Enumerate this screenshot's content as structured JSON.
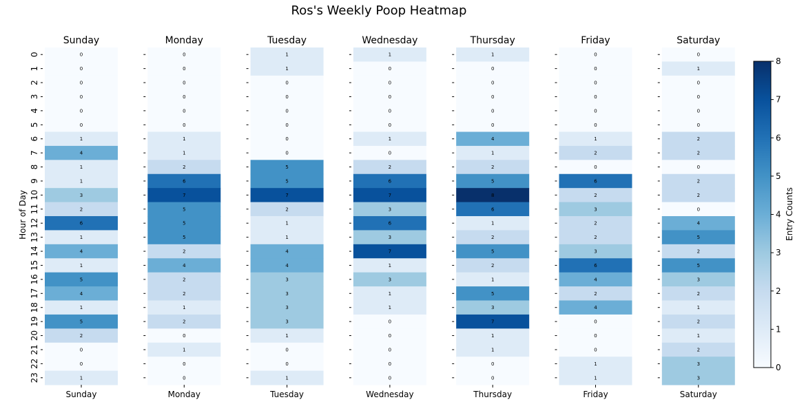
{
  "chart_data": {
    "type": "heatmap",
    "title": "Ros's Weekly Poop Heatmap",
    "ylabel": "Hour of Day",
    "colorbar_label": "Entry Counts",
    "colorbar_ticks": [
      "0",
      "1",
      "2",
      "3",
      "4",
      "5",
      "6",
      "7",
      "8"
    ],
    "value_range": [
      0,
      8
    ],
    "colormap": "Blues",
    "hours": [
      "0",
      "1",
      "2",
      "3",
      "4",
      "5",
      "6",
      "7",
      "8",
      "9",
      "10",
      "11",
      "12",
      "13",
      "14",
      "15",
      "16",
      "17",
      "18",
      "19",
      "20",
      "21",
      "22",
      "23"
    ],
    "days": [
      {
        "name": "Sunday",
        "values": [
          0,
          0,
          0,
          0,
          0,
          0,
          1,
          4,
          1,
          1,
          3,
          2,
          6,
          1,
          4,
          1,
          5,
          4,
          1,
          5,
          2,
          0,
          0,
          1
        ]
      },
      {
        "name": "Monday",
        "values": [
          0,
          0,
          0,
          0,
          0,
          0,
          1,
          1,
          2,
          6,
          7,
          5,
          5,
          5,
          2,
          4,
          2,
          2,
          1,
          2,
          0,
          1,
          0,
          0
        ]
      },
      {
        "name": "Tuesday",
        "values": [
          1,
          1,
          0,
          0,
          0,
          0,
          0,
          0,
          5,
          5,
          7,
          2,
          1,
          1,
          4,
          4,
          3,
          3,
          3,
          3,
          1,
          0,
          0,
          1
        ]
      },
      {
        "name": "Wednesday",
        "values": [
          1,
          0,
          0,
          0,
          0,
          0,
          1,
          0,
          2,
          6,
          7,
          3,
          6,
          3,
          7,
          1,
          3,
          1,
          1,
          0,
          0,
          0,
          0,
          0
        ]
      },
      {
        "name": "Thursday",
        "values": [
          1,
          0,
          0,
          0,
          0,
          0,
          4,
          1,
          2,
          5,
          8,
          6,
          1,
          2,
          5,
          2,
          1,
          5,
          3,
          7,
          1,
          1,
          0,
          0
        ]
      },
      {
        "name": "Friday",
        "values": [
          0,
          0,
          0,
          0,
          0,
          0,
          1,
          2,
          0,
          6,
          2,
          3,
          2,
          2,
          3,
          6,
          4,
          2,
          4,
          0,
          0,
          0,
          1,
          1
        ]
      },
      {
        "name": "Saturday",
        "values": [
          0,
          1,
          0,
          0,
          0,
          0,
          2,
          2,
          0,
          2,
          2,
          0,
          4,
          5,
          2,
          5,
          3,
          2,
          1,
          2,
          1,
          2,
          3,
          3
        ]
      }
    ]
  }
}
